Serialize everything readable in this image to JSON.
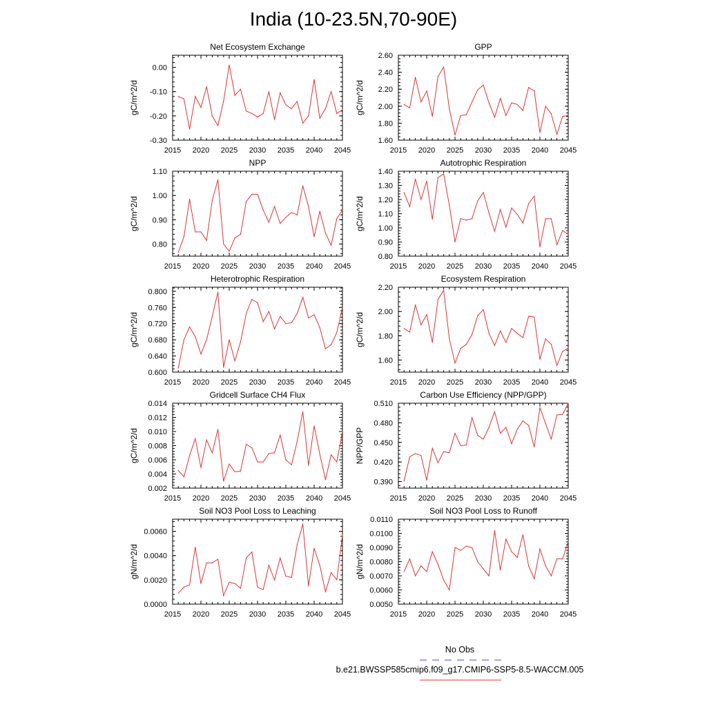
{
  "title": "India (10-23.5N,70-90E)",
  "legend": {
    "obs_label": "No Obs",
    "obs_color": "#4a4ad8",
    "model_label": "b.e21.BWSSP585cmip6.f09_g17.CMIP6-SSP5-8.5-WACCM.005",
    "model_color": "#e83030"
  },
  "chart_data": [
    {
      "type": "line",
      "title": "Net Ecosystem Exchange",
      "ylabel": "gC/m^2/d",
      "xlim": [
        2015,
        2045
      ],
      "xticks": [
        2015,
        2020,
        2025,
        2030,
        2035,
        2040,
        2045
      ],
      "ylim": [
        -0.3,
        0.05
      ],
      "yticks": [
        -0.3,
        -0.2,
        -0.1,
        0.0
      ],
      "ytick_labels": [
        "-0.30",
        "-0.20",
        "-0.10",
        "0.00"
      ],
      "x": [
        2016,
        2017,
        2018,
        2019,
        2020,
        2021,
        2022,
        2023,
        2024,
        2025,
        2026,
        2027,
        2028,
        2029,
        2030,
        2031,
        2032,
        2033,
        2034,
        2035,
        2036,
        2037,
        2038,
        2039,
        2040,
        2041,
        2042,
        2043,
        2044,
        2045
      ],
      "series": [
        {
          "name": "b.e21.BWSSP585cmip6.f09_g17.CMIP6-SSP5-8.5-WACCM.005",
          "values": [
            -0.12,
            -0.13,
            -0.255,
            -0.12,
            -0.165,
            -0.08,
            -0.2,
            -0.24,
            -0.14,
            0.01,
            -0.115,
            -0.09,
            -0.18,
            -0.19,
            -0.205,
            -0.19,
            -0.1,
            -0.215,
            -0.105,
            -0.155,
            -0.17,
            -0.14,
            -0.23,
            -0.2,
            -0.05,
            -0.21,
            -0.17,
            -0.1,
            -0.19,
            -0.175
          ]
        }
      ]
    },
    {
      "type": "line",
      "title": "GPP",
      "ylabel": "gC/m^2/d",
      "xlim": [
        2015,
        2045
      ],
      "xticks": [
        2015,
        2020,
        2025,
        2030,
        2035,
        2040,
        2045
      ],
      "ylim": [
        1.6,
        2.6
      ],
      "yticks": [
        1.6,
        1.8,
        2.0,
        2.2,
        2.4,
        2.6
      ],
      "ytick_labels": [
        "1.60",
        "1.80",
        "2.00",
        "2.20",
        "2.40",
        "2.60"
      ],
      "x": [
        2016,
        2017,
        2018,
        2019,
        2020,
        2021,
        2022,
        2023,
        2024,
        2025,
        2026,
        2027,
        2028,
        2029,
        2030,
        2031,
        2032,
        2033,
        2034,
        2035,
        2036,
        2037,
        2038,
        2039,
        2040,
        2041,
        2042,
        2043,
        2044,
        2045
      ],
      "series": [
        {
          "name": "b.e21.BWSSP585cmip6.f09_g17.CMIP6-SSP5-8.5-WACCM.005",
          "values": [
            2.02,
            1.98,
            2.34,
            2.05,
            2.18,
            1.88,
            2.35,
            2.46,
            1.97,
            1.66,
            1.89,
            1.9,
            2.05,
            2.19,
            2.25,
            2.04,
            1.87,
            2.09,
            1.89,
            2.04,
            2.02,
            1.95,
            2.22,
            2.18,
            1.69,
            2.0,
            1.91,
            1.67,
            1.88,
            1.89
          ]
        }
      ]
    },
    {
      "type": "line",
      "title": "NPP",
      "ylabel": "gC/m^2/d",
      "xlim": [
        2015,
        2045
      ],
      "xticks": [
        2015,
        2020,
        2025,
        2030,
        2035,
        2040,
        2045
      ],
      "ylim": [
        0.75,
        1.1
      ],
      "yticks": [
        0.8,
        0.9,
        1.0,
        1.1
      ],
      "ytick_labels": [
        "0.80",
        "0.90",
        "1.00",
        "1.10"
      ],
      "x": [
        2016,
        2017,
        2018,
        2019,
        2020,
        2021,
        2022,
        2023,
        2024,
        2025,
        2026,
        2027,
        2028,
        2029,
        2030,
        2031,
        2032,
        2033,
        2034,
        2035,
        2036,
        2037,
        2038,
        2039,
        2040,
        2041,
        2042,
        2043,
        2044,
        2045
      ],
      "series": [
        {
          "name": "b.e21.BWSSP585cmip6.f09_g17.CMIP6-SSP5-8.5-WACCM.005",
          "values": [
            0.765,
            0.83,
            0.985,
            0.85,
            0.85,
            0.815,
            0.98,
            1.065,
            0.8,
            0.77,
            0.825,
            0.84,
            0.975,
            1.005,
            1.005,
            0.94,
            0.89,
            0.955,
            0.885,
            0.91,
            0.93,
            0.92,
            1.04,
            0.955,
            0.83,
            0.935,
            0.845,
            0.795,
            0.905,
            0.94
          ]
        }
      ]
    },
    {
      "type": "line",
      "title": "Autotrophic Respiration",
      "ylabel": "gC/m^2/d",
      "xlim": [
        2015,
        2045
      ],
      "xticks": [
        2015,
        2020,
        2025,
        2030,
        2035,
        2040,
        2045
      ],
      "ylim": [
        0.8,
        1.4
      ],
      "yticks": [
        0.8,
        0.9,
        1.0,
        1.1,
        1.2,
        1.3,
        1.4
      ],
      "ytick_labels": [
        "0.80",
        "0.90",
        "1.00",
        "1.10",
        "1.20",
        "1.30",
        "1.40"
      ],
      "x": [
        2016,
        2017,
        2018,
        2019,
        2020,
        2021,
        2022,
        2023,
        2024,
        2025,
        2026,
        2027,
        2028,
        2029,
        2030,
        2031,
        2032,
        2033,
        2034,
        2035,
        2036,
        2037,
        2038,
        2039,
        2040,
        2041,
        2042,
        2043,
        2044,
        2045
      ],
      "series": [
        {
          "name": "b.e21.BWSSP585cmip6.f09_g17.CMIP6-SSP5-8.5-WACCM.005",
          "values": [
            1.25,
            1.15,
            1.345,
            1.2,
            1.33,
            1.06,
            1.355,
            1.38,
            1.16,
            0.9,
            1.065,
            1.055,
            1.065,
            1.19,
            1.25,
            1.105,
            0.975,
            1.13,
            1.005,
            1.14,
            1.095,
            1.035,
            1.17,
            1.225,
            0.865,
            1.065,
            1.065,
            0.88,
            0.98,
            0.955
          ]
        }
      ]
    },
    {
      "type": "line",
      "title": "Heterotrophic Respiration",
      "ylabel": "gC/m^2/d",
      "xlim": [
        2015,
        2045
      ],
      "xticks": [
        2015,
        2020,
        2025,
        2030,
        2035,
        2040,
        2045
      ],
      "ylim": [
        0.6,
        0.81
      ],
      "yticks": [
        0.6,
        0.64,
        0.68,
        0.72,
        0.76,
        0.8
      ],
      "ytick_labels": [
        "0.600",
        "0.640",
        "0.680",
        "0.720",
        "0.760",
        "0.800"
      ],
      "x": [
        2016,
        2017,
        2018,
        2019,
        2020,
        2021,
        2022,
        2023,
        2024,
        2025,
        2026,
        2027,
        2028,
        2029,
        2030,
        2031,
        2032,
        2033,
        2034,
        2035,
        2036,
        2037,
        2038,
        2039,
        2040,
        2041,
        2042,
        2043,
        2044,
        2045
      ],
      "series": [
        {
          "name": "b.e21.BWSSP585cmip6.f09_g17.CMIP6-SSP5-8.5-WACCM.005",
          "values": [
            0.61,
            0.68,
            0.712,
            0.688,
            0.645,
            0.68,
            0.738,
            0.798,
            0.612,
            0.68,
            0.628,
            0.675,
            0.745,
            0.78,
            0.772,
            0.725,
            0.75,
            0.707,
            0.738,
            0.72,
            0.722,
            0.745,
            0.785,
            0.734,
            0.742,
            0.71,
            0.658,
            0.668,
            0.698,
            0.76
          ]
        }
      ]
    },
    {
      "type": "line",
      "title": "Ecosystem Respiration",
      "ylabel": "gC/m^2/d",
      "xlim": [
        2015,
        2045
      ],
      "xticks": [
        2015,
        2020,
        2025,
        2030,
        2035,
        2040,
        2045
      ],
      "ylim": [
        1.5,
        2.2
      ],
      "yticks": [
        1.6,
        1.8,
        2.0,
        2.2
      ],
      "ytick_labels": [
        "1.60",
        "1.80",
        "2.00",
        "2.20"
      ],
      "x": [
        2016,
        2017,
        2018,
        2019,
        2020,
        2021,
        2022,
        2023,
        2024,
        2025,
        2026,
        2027,
        2028,
        2029,
        2030,
        2031,
        2032,
        2033,
        2034,
        2035,
        2036,
        2037,
        2038,
        2039,
        2040,
        2041,
        2042,
        2043,
        2044,
        2045
      ],
      "series": [
        {
          "name": "b.e21.BWSSP585cmip6.f09_g17.CMIP6-SSP5-8.5-WACCM.005",
          "values": [
            1.86,
            1.83,
            2.055,
            1.89,
            1.975,
            1.745,
            2.1,
            2.175,
            1.775,
            1.575,
            1.695,
            1.73,
            1.81,
            1.965,
            2.015,
            1.82,
            1.72,
            1.84,
            1.745,
            1.86,
            1.82,
            1.785,
            1.96,
            1.955,
            1.605,
            1.775,
            1.73,
            1.555,
            1.67,
            1.7
          ]
        }
      ]
    },
    {
      "type": "line",
      "title": "Gridcell Surface CH4 Flux",
      "ylabel": "gC/m^2/d",
      "xlim": [
        2015,
        2045
      ],
      "xticks": [
        2015,
        2020,
        2025,
        2030,
        2035,
        2040,
        2045
      ],
      "ylim": [
        0.002,
        0.014
      ],
      "yticks": [
        0.002,
        0.004,
        0.006,
        0.008,
        0.01,
        0.012,
        0.014
      ],
      "ytick_labels": [
        "0.002",
        "0.004",
        "0.006",
        "0.008",
        "0.010",
        "0.012",
        "0.014"
      ],
      "x": [
        2016,
        2017,
        2018,
        2019,
        2020,
        2021,
        2022,
        2023,
        2024,
        2025,
        2026,
        2027,
        2028,
        2029,
        2030,
        2031,
        2032,
        2033,
        2034,
        2035,
        2036,
        2037,
        2038,
        2039,
        2040,
        2041,
        2042,
        2043,
        2044,
        2045
      ],
      "series": [
        {
          "name": "b.e21.BWSSP585cmip6.f09_g17.CMIP6-SSP5-8.5-WACCM.005",
          "values": [
            0.0045,
            0.0036,
            0.0066,
            0.009,
            0.0049,
            0.0088,
            0.007,
            0.0103,
            0.003,
            0.0054,
            0.0043,
            0.0044,
            0.0082,
            0.0077,
            0.0057,
            0.0057,
            0.0069,
            0.007,
            0.0095,
            0.006,
            0.0053,
            0.0086,
            0.0128,
            0.0052,
            0.0108,
            0.0068,
            0.0032,
            0.0067,
            0.0057,
            0.01
          ]
        }
      ]
    },
    {
      "type": "line",
      "title": "Carbon Use Efficiency (NPP/GPP)",
      "ylabel": "NPP/GPP",
      "xlim": [
        2015,
        2045
      ],
      "xticks": [
        2015,
        2020,
        2025,
        2030,
        2035,
        2040,
        2045
      ],
      "ylim": [
        0.38,
        0.51
      ],
      "yticks": [
        0.39,
        0.42,
        0.45,
        0.48,
        0.51
      ],
      "ytick_labels": [
        "0.390",
        "0.420",
        "0.450",
        "0.480",
        "0.510"
      ],
      "x": [
        2016,
        2017,
        2018,
        2019,
        2020,
        2021,
        2022,
        2023,
        2024,
        2025,
        2026,
        2027,
        2028,
        2029,
        2030,
        2031,
        2032,
        2033,
        2034,
        2035,
        2036,
        2037,
        2038,
        2039,
        2040,
        2041,
        2042,
        2043,
        2044,
        2045
      ],
      "series": [
        {
          "name": "b.e21.BWSSP585cmip6.f09_g17.CMIP6-SSP5-8.5-WACCM.005",
          "values": [
            0.391,
            0.428,
            0.433,
            0.43,
            0.392,
            0.441,
            0.419,
            0.436,
            0.434,
            0.464,
            0.445,
            0.446,
            0.488,
            0.461,
            0.455,
            0.473,
            0.497,
            0.464,
            0.473,
            0.448,
            0.47,
            0.483,
            0.476,
            0.443,
            0.503,
            0.479,
            0.455,
            0.492,
            0.493,
            0.51
          ]
        }
      ]
    },
    {
      "type": "line",
      "title": "Soil NO3 Pool Loss to Leaching",
      "ylabel": "gN/m^2/d",
      "xlim": [
        2015,
        2045
      ],
      "xticks": [
        2015,
        2020,
        2025,
        2030,
        2035,
        2040,
        2045
      ],
      "ylim": [
        0.0,
        0.007
      ],
      "yticks": [
        0.0,
        0.002,
        0.004,
        0.006
      ],
      "ytick_labels": [
        "0.0000",
        "0.0020",
        "0.0040",
        "0.0060"
      ],
      "x": [
        2016,
        2017,
        2018,
        2019,
        2020,
        2021,
        2022,
        2023,
        2024,
        2025,
        2026,
        2027,
        2028,
        2029,
        2030,
        2031,
        2032,
        2033,
        2034,
        2035,
        2036,
        2037,
        2038,
        2039,
        2040,
        2041,
        2042,
        2043,
        2044,
        2045
      ],
      "series": [
        {
          "name": "b.e21.BWSSP585cmip6.f09_g17.CMIP6-SSP5-8.5-WACCM.005",
          "values": [
            0.0009,
            0.0014,
            0.0016,
            0.0047,
            0.0017,
            0.0034,
            0.0034,
            0.0037,
            0.0007,
            0.0018,
            0.0017,
            0.0013,
            0.0038,
            0.0043,
            0.0014,
            0.0012,
            0.0032,
            0.002,
            0.0038,
            0.0023,
            0.0022,
            0.0049,
            0.0066,
            0.0015,
            0.0046,
            0.0032,
            0.001,
            0.0026,
            0.002,
            0.0057
          ]
        }
      ]
    },
    {
      "type": "line",
      "title": "Soil NO3 Pool Loss to Runoff",
      "ylabel": "gN/m^2/d",
      "xlim": [
        2015,
        2045
      ],
      "xticks": [
        2015,
        2020,
        2025,
        2030,
        2035,
        2040,
        2045
      ],
      "ylim": [
        0.005,
        0.011
      ],
      "yticks": [
        0.005,
        0.006,
        0.007,
        0.008,
        0.009,
        0.01,
        0.011
      ],
      "ytick_labels": [
        "0.0050",
        "0.0060",
        "0.0070",
        "0.0080",
        "0.0090",
        "0.0100",
        "0.0110"
      ],
      "x": [
        2016,
        2017,
        2018,
        2019,
        2020,
        2021,
        2022,
        2023,
        2024,
        2025,
        2026,
        2027,
        2028,
        2029,
        2030,
        2031,
        2032,
        2033,
        2034,
        2035,
        2036,
        2037,
        2038,
        2039,
        2040,
        2041,
        2042,
        2043,
        2044,
        2045
      ],
      "series": [
        {
          "name": "b.e21.BWSSP585cmip6.f09_g17.CMIP6-SSP5-8.5-WACCM.005",
          "values": [
            0.0073,
            0.0082,
            0.007,
            0.0077,
            0.0073,
            0.0087,
            0.0078,
            0.0067,
            0.006,
            0.009,
            0.0088,
            0.0091,
            0.009,
            0.008,
            0.0075,
            0.007,
            0.0102,
            0.0074,
            0.0096,
            0.0087,
            0.0083,
            0.0099,
            0.0077,
            0.0068,
            0.0089,
            0.0077,
            0.007,
            0.0082,
            0.0082,
            0.0094
          ]
        }
      ]
    }
  ]
}
